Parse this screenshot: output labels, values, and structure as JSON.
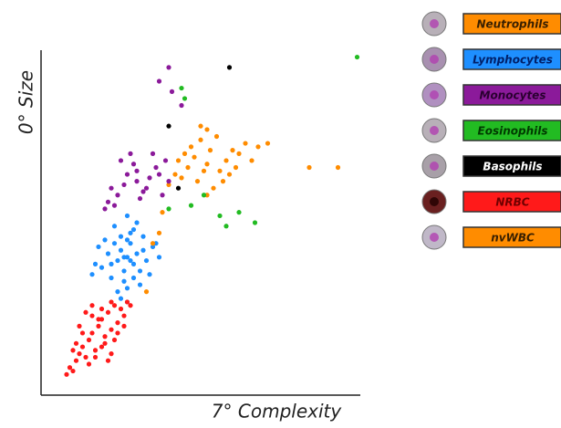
{
  "chart_data": {
    "type": "scatter",
    "x_label": "7° Complexity",
    "y_label": "0° Size",
    "xlim": [
      0,
      100
    ],
    "ylim": [
      0,
      100
    ],
    "series": [
      {
        "name": "Neutrophils",
        "color": "#ff8c00",
        "x": [
          52,
          48,
          56,
          44,
          60,
          40,
          64,
          50,
          54,
          46,
          58,
          42,
          62,
          68,
          52,
          49,
          55,
          45,
          59,
          47,
          57,
          51,
          53,
          66,
          71,
          43,
          61,
          52,
          50,
          84,
          93
        ],
        "y": [
          67,
          69,
          65,
          63,
          71,
          61,
          73,
          74,
          60,
          66,
          68,
          64,
          70,
          72,
          77,
          62,
          75,
          70,
          64,
          72,
          62,
          65,
          71,
          68,
          73,
          68,
          66,
          58,
          78,
          66,
          66
        ]
      },
      {
        "name": "Lymphocytes",
        "color": "#1e8fff",
        "x": [
          27,
          25,
          29,
          23,
          31,
          21,
          33,
          19,
          35,
          26,
          28,
          24,
          30,
          22,
          32,
          20,
          34,
          27,
          25,
          29,
          17,
          37,
          26,
          28,
          24,
          30,
          27,
          23,
          31,
          18,
          36,
          25,
          29,
          27,
          22,
          32,
          16,
          26,
          28,
          27
        ],
        "y": [
          40,
          42,
          38,
          44,
          36,
          41,
          39,
          37,
          43,
          33,
          47,
          30,
          50,
          34,
          46,
          45,
          35,
          52,
          28,
          48,
          38,
          40,
          36,
          44,
          39,
          41,
          31,
          49,
          32,
          43,
          44,
          46,
          34,
          27,
          38,
          42,
          35,
          40,
          39,
          45
        ]
      },
      {
        "name": "Monocytes",
        "color": "#8b1a9a",
        "x": [
          30,
          27,
          33,
          24,
          36,
          21,
          39,
          29,
          31,
          26,
          34,
          23,
          37,
          28,
          32,
          25,
          35,
          20,
          40,
          30,
          38,
          22,
          40,
          37,
          41,
          44
        ],
        "y": [
          62,
          64,
          60,
          58,
          66,
          56,
          68,
          67,
          57,
          61,
          63,
          55,
          64,
          70,
          59,
          68,
          70,
          54,
          62,
          65,
          58,
          60,
          95,
          91,
          88,
          84
        ]
      },
      {
        "name": "Eosinophils",
        "color": "#22bb22",
        "x": [
          47,
          56,
          67,
          51,
          40,
          62,
          58,
          44,
          99,
          45
        ],
        "y": [
          55,
          52,
          50,
          58,
          54,
          53,
          49,
          89,
          98,
          86
        ]
      },
      {
        "name": "Basophils",
        "color": "#000000",
        "x": [
          59,
          40,
          43
        ],
        "y": [
          95,
          78,
          60
        ]
      },
      {
        "name": "NRBC",
        "color": "#ff1a1a",
        "x": [
          8,
          9,
          10,
          11,
          12,
          13,
          14,
          15,
          16,
          17,
          18,
          19,
          20,
          21,
          22,
          23,
          24,
          25,
          26,
          27,
          28,
          12,
          14,
          16,
          18,
          20,
          22,
          24,
          26,
          15,
          17,
          19,
          21,
          23,
          13,
          16,
          19,
          22,
          11,
          10
        ],
        "y": [
          6,
          8,
          7,
          10,
          12,
          14,
          11,
          16,
          18,
          13,
          20,
          22,
          17,
          24,
          19,
          26,
          21,
          25,
          23,
          27,
          26,
          20,
          24,
          26,
          22,
          15,
          12,
          18,
          20,
          9,
          11,
          14,
          10,
          16,
          18,
          23,
          25,
          27,
          15,
          13
        ]
      },
      {
        "name": "nvWBC",
        "color": "#ff8c00",
        "x": [
          37,
          35,
          38,
          33
        ],
        "y": [
          47,
          44,
          53,
          30
        ]
      }
    ]
  }
}
